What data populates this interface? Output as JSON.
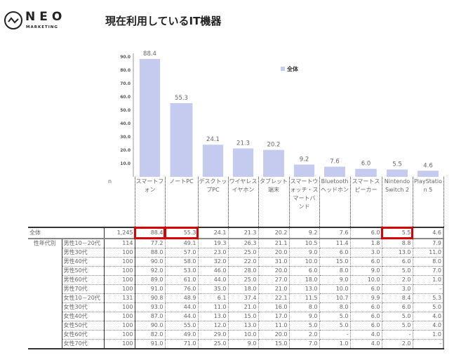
{
  "brand": {
    "name": "NEO",
    "sub": "MARKETING"
  },
  "title": "現在利用しているIT機器",
  "chart_data": {
    "type": "bar",
    "categories": [
      "スマートフォン",
      "ノートPC",
      "デスクトップPC",
      "ワイヤレスイヤホン",
      "タブレット端末",
      "スマートウォッチ・スマートバンド",
      "Bluetoothヘッドホン",
      "スマートスピーカー",
      "Nintendo Switch 2",
      "PlayStation 5"
    ],
    "series": [
      {
        "name": "全体",
        "values": [
          88.4,
          55.3,
          24.1,
          21.3,
          20.2,
          9.2,
          7.6,
          6.0,
          5.5,
          4.6
        ]
      }
    ],
    "yticks": [
      "10.0",
      "20.0",
      "30.0",
      "40.0",
      "50.0",
      "60.0",
      "70.0",
      "80.0",
      "90.0"
    ],
    "ylim": [
      0,
      90
    ],
    "bar_color": "#c5cbef",
    "legend": "top-right",
    "data_labels": [
      "88.4",
      "55.3",
      "24.1",
      "21.3",
      "20.2",
      "9.2",
      "7.6",
      "6.0",
      "5.5",
      "4.6"
    ]
  },
  "table": {
    "n_label": "n",
    "group_label": "性年代別",
    "headers": [
      "スマートフォン",
      "ノートPC",
      "デスクトップPC",
      "ワイヤレスイヤホン",
      "タブレット端末",
      "スマートウォッチ・スマートバンド",
      "Bluetoothヘッドホン",
      "スマートスピーカー",
      "Nintendo Switch 2",
      "PlayStation 5"
    ],
    "total": {
      "label": "全体",
      "n": "1,245",
      "values": [
        "88.4",
        "55.3",
        "24.1",
        "21.3",
        "20.2",
        "9.2",
        "7.6",
        "6.0",
        "5.5",
        "4.6"
      ]
    },
    "rows": [
      {
        "label": "男性10－20代",
        "n": "114",
        "values": [
          "77.2",
          "49.1",
          "19.3",
          "26.3",
          "21.1",
          "10.5",
          "11.4",
          "1.8",
          "8.8",
          "7.9"
        ]
      },
      {
        "label": "男性30代",
        "n": "100",
        "values": [
          "88.0",
          "57.0",
          "23.0",
          "25.0",
          "20.0",
          "9.0",
          "6.0",
          "3.0",
          "13.0",
          "11.0"
        ]
      },
      {
        "label": "男性40代",
        "n": "100",
        "values": [
          "90.0",
          "58.0",
          "32.0",
          "22.0",
          "31.0",
          "10.0",
          "15.0",
          "6.0",
          "6.0",
          "8.0"
        ]
      },
      {
        "label": "男性50代",
        "n": "100",
        "values": [
          "92.0",
          "53.0",
          "46.0",
          "28.0",
          "20.0",
          "6.0",
          "8.0",
          "9.0",
          "5.0",
          "7.0"
        ]
      },
      {
        "label": "男性60代",
        "n": "100",
        "values": [
          "89.0",
          "61.0",
          "44.0",
          "25.0",
          "27.0",
          "18.0",
          "9.0",
          "10.0",
          "2.0",
          "1.0"
        ]
      },
      {
        "label": "男性70代",
        "n": "100",
        "values": [
          "91.0",
          "76.0",
          "35.0",
          "18.0",
          "21.0",
          "13.0",
          "10.0",
          "6.0",
          "3.0",
          "-"
        ]
      },
      {
        "label": "女性10－20代",
        "n": "131",
        "values": [
          "90.8",
          "48.9",
          "6.1",
          "37.4",
          "22.1",
          "11.5",
          "10.7",
          "9.9",
          "8.4",
          "5.3"
        ]
      },
      {
        "label": "女性30代",
        "n": "100",
        "values": [
          "93.0",
          "44.0",
          "11.0",
          "21.0",
          "16.0",
          "8.0",
          "8.0",
          "6.0",
          "6.0",
          "5.0"
        ]
      },
      {
        "label": "女性40代",
        "n": "100",
        "values": [
          "87.0",
          "44.0",
          "13.0",
          "15.0",
          "17.0",
          "9.0",
          "5.0",
          "6.0",
          "5.0",
          "4.0"
        ]
      },
      {
        "label": "女性50代",
        "n": "100",
        "values": [
          "90.0",
          "55.0",
          "12.0",
          "13.0",
          "11.0",
          "5.0",
          "5.0",
          "6.0",
          "5.0",
          "4.0"
        ]
      },
      {
        "label": "女性60代",
        "n": "100",
        "values": [
          "82.0",
          "49.0",
          "29.0",
          "10.0",
          "20.0",
          "2.0",
          "-",
          "4.0",
          "-",
          "1.0"
        ]
      },
      {
        "label": "女性70代",
        "n": "100",
        "values": [
          "91.0",
          "71.0",
          "25.0",
          "9.0",
          "15.0",
          "7.0",
          "1.0",
          "4.0",
          "2.0",
          "-"
        ]
      }
    ],
    "highlight_color": "#dd0000"
  }
}
